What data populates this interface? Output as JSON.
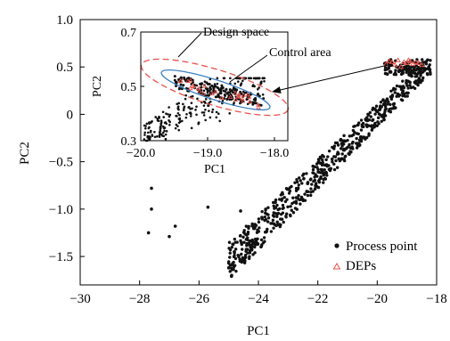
{
  "chart_data": {
    "type": "scatter",
    "xlabel": "PC1",
    "ylabel": "PC2",
    "xlim": [
      -30,
      -18
    ],
    "ylim": [
      -1.8,
      1.0
    ],
    "xticks": [
      "−30",
      "−28",
      "−26",
      "−24",
      "−22",
      "−20",
      "−18"
    ],
    "yticks": [
      "1.0",
      "0.5",
      "0",
      "−0.5",
      "−1.0",
      "−1.5"
    ],
    "xtick_values": [
      -30,
      -28,
      -26,
      -24,
      -22,
      -20,
      -18
    ],
    "ytick_values": [
      1.0,
      0.5,
      0,
      -0.5,
      -1.0,
      -1.5
    ],
    "legend": [
      "Process point",
      "DEPs"
    ],
    "legend_placement": "bottom-right",
    "series": [
      {
        "name": "Process point",
        "marker": "filled-circle",
        "color": "#111111",
        "points": [
          [
            -27.6,
            -0.78
          ],
          [
            -27.6,
            -1.0
          ],
          [
            -27.7,
            -1.25
          ],
          [
            -26.8,
            -1.18
          ],
          [
            -27.0,
            -1.29
          ],
          [
            -25.7,
            -0.98
          ],
          [
            -24.6,
            -1.02
          ],
          [
            -25.0,
            -1.62
          ],
          [
            -24.9,
            -1.7
          ],
          [
            -24.5,
            -1.55
          ]
        ],
        "band": {
          "x_start": -25.0,
          "x_end": -18.4,
          "lower_start": -1.75,
          "lower_end": 0.38,
          "upper_start": -1.35,
          "upper_end": 0.58,
          "count": 600
        },
        "cluster": {
          "x_range": [
            -19.8,
            -18.2
          ],
          "y_range": [
            0.42,
            0.58
          ],
          "count": 120
        }
      },
      {
        "name": "DEPs",
        "marker": "open-triangle",
        "color": "#e8504a",
        "points": [
          [
            -19.7,
            0.53
          ],
          [
            -19.5,
            0.55
          ],
          [
            -19.3,
            0.57
          ],
          [
            -19.1,
            0.55
          ],
          [
            -19.0,
            0.54
          ],
          [
            -18.9,
            0.56
          ],
          [
            -18.8,
            0.53
          ],
          [
            -18.7,
            0.55
          ],
          [
            -18.6,
            0.54
          ],
          [
            -19.4,
            0.52
          ],
          [
            -19.2,
            0.5
          ],
          [
            -18.95,
            0.57
          ],
          [
            -18.5,
            0.52
          ],
          [
            -19.6,
            0.56
          ]
        ]
      }
    ],
    "inset": {
      "xlabel": "PC1",
      "ylabel": "PC2",
      "xlim": [
        -20.0,
        -17.8
      ],
      "ylim": [
        0.3,
        0.7
      ],
      "xticks": [
        "−20.0",
        "−19.0",
        "−18.0"
      ],
      "yticks": [
        "0.7",
        "0.5",
        "0.3"
      ],
      "xtick_values": [
        -20.0,
        -19.0,
        -18.0
      ],
      "ytick_values": [
        0.7,
        0.5,
        0.3
      ],
      "annotations": [
        "Design space",
        "Control area"
      ],
      "design_space_color": "#e8504a",
      "control_area_color": "#3a7fc0"
    }
  }
}
